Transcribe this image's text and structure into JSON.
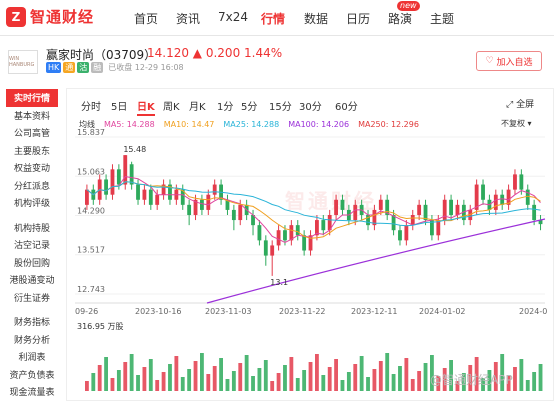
{
  "brand": {
    "logo_char": "Z",
    "name": "智通财经"
  },
  "nav": {
    "items": [
      "首页",
      "资讯",
      "7x24",
      "行情",
      "数据",
      "日历",
      "路演",
      "主题"
    ],
    "active": "行情",
    "new_badge": "new"
  },
  "stock": {
    "logo_text": "WIN HANBURG",
    "name_code": "赢家时尚（03709）",
    "price_line": "14.120 ▲ 0.200 1.44%",
    "tags": [
      {
        "t": "HK",
        "c": "#2f7ef5"
      },
      {
        "t": "通",
        "c": "#f5a623"
      },
      {
        "t": "沽",
        "c": "#3bb16c"
      },
      {
        "t": "融",
        "c": "#bbbbbb"
      }
    ],
    "status_time": "已收盘 12-29 16:08",
    "watch_label": "加入自选",
    "watch_icon": "heart-icon"
  },
  "sidebar": {
    "group1": [
      "实时行情",
      "基本资料",
      "公司高管",
      "主要股东",
      "权益变动",
      "分红派息",
      "机构评级"
    ],
    "group2": [
      "机构持股",
      "沽空记录",
      "股份回购",
      "港股通变动",
      "衍生证券"
    ],
    "group3": [
      "财务指标",
      "财务分析",
      "利润表",
      "资产负债表",
      "现金流量表"
    ],
    "active": "实时行情"
  },
  "period_tabs": [
    "分时",
    "5日",
    "日K",
    "周K",
    "月K",
    "1分",
    "5分",
    "15分",
    "30分",
    "60分"
  ],
  "active_period": "日K",
  "expand_label": "全屏",
  "ma_legend": [
    {
      "t": "均线",
      "c": "#333333"
    },
    {
      "t": "MA5: 14.288",
      "c": "#e0459e"
    },
    {
      "t": "MA10: 14.47",
      "c": "#f0a020"
    },
    {
      "t": "MA25: 14.288",
      "c": "#2ab4d8"
    },
    {
      "t": "MA100: 14.206",
      "c": "#9b30d9"
    },
    {
      "t": "MA250: 12.296",
      "c": "#e03a3a"
    }
  ],
  "adjust_label": "不复权 ▾",
  "watermark": "智通财经",
  "corner_watermark": "@智通财经APP",
  "chart_data": {
    "type": "candlestick",
    "y_ticks": [
      "15.837",
      "15.063",
      "14.290",
      "13.517",
      "12.743"
    ],
    "ylim": [
      12.743,
      15.837
    ],
    "x_labels": [
      "09-26",
      "2023-10-16",
      "2023-11-03",
      "2023-11-22",
      "2023-12-11",
      "2024-01-02",
      "2024-0"
    ],
    "annotations": [
      {
        "label": "15.48",
        "value": 15.48
      },
      {
        "label": "13.1",
        "value": 13.1
      }
    ],
    "volume_label": "316.95 万股",
    "candles": [
      [
        14.5,
        14.8,
        14.9,
        14.4
      ],
      [
        14.8,
        14.6,
        14.9,
        14.5
      ],
      [
        14.6,
        15.0,
        15.1,
        14.5
      ],
      [
        15.0,
        14.7,
        15.1,
        14.6
      ],
      [
        14.7,
        15.2,
        15.3,
        14.6
      ],
      [
        15.2,
        14.9,
        15.3,
        14.8
      ],
      [
        14.9,
        15.48,
        15.48,
        14.8
      ],
      [
        15.3,
        14.9,
        15.35,
        14.8
      ],
      [
        14.9,
        14.6,
        15.0,
        14.5
      ],
      [
        14.6,
        14.8,
        14.9,
        14.5
      ],
      [
        14.8,
        14.5,
        14.9,
        14.4
      ],
      [
        14.5,
        14.7,
        14.8,
        14.4
      ],
      [
        14.7,
        14.9,
        15.0,
        14.6
      ],
      [
        14.9,
        14.6,
        15.0,
        14.5
      ],
      [
        14.6,
        14.8,
        14.9,
        14.5
      ],
      [
        14.8,
        14.5,
        14.9,
        14.4
      ],
      [
        14.5,
        14.3,
        14.6,
        14.1
      ],
      [
        14.3,
        14.6,
        14.7,
        14.2
      ],
      [
        14.6,
        14.4,
        14.7,
        14.3
      ],
      [
        14.4,
        14.7,
        14.8,
        14.3
      ],
      [
        14.7,
        14.9,
        15.0,
        14.6
      ],
      [
        14.9,
        14.6,
        15.0,
        14.5
      ],
      [
        14.6,
        14.4,
        14.7,
        14.3
      ],
      [
        14.4,
        14.2,
        14.5,
        14.0
      ],
      [
        14.2,
        14.5,
        14.6,
        14.1
      ],
      [
        14.5,
        14.3,
        14.6,
        14.2
      ],
      [
        14.3,
        14.1,
        14.4,
        13.9
      ],
      [
        14.1,
        13.8,
        14.2,
        13.7
      ],
      [
        13.8,
        13.5,
        13.9,
        13.3
      ],
      [
        13.5,
        13.7,
        13.8,
        13.1
      ],
      [
        13.7,
        14.0,
        14.1,
        13.6
      ],
      [
        14.0,
        13.8,
        14.1,
        13.7
      ],
      [
        13.8,
        14.1,
        14.2,
        13.7
      ],
      [
        14.1,
        13.9,
        14.2,
        13.8
      ],
      [
        13.9,
        13.6,
        14.0,
        13.5
      ],
      [
        13.6,
        13.9,
        14.0,
        13.5
      ],
      [
        13.9,
        14.2,
        14.3,
        13.8
      ],
      [
        14.2,
        14.0,
        14.3,
        13.9
      ],
      [
        14.0,
        14.3,
        14.4,
        13.9
      ],
      [
        14.3,
        14.6,
        14.7,
        14.2
      ],
      [
        14.6,
        14.4,
        14.7,
        14.3
      ],
      [
        14.4,
        14.2,
        14.5,
        14.1
      ],
      [
        14.2,
        14.5,
        14.6,
        14.1
      ],
      [
        14.5,
        14.3,
        14.6,
        14.2
      ],
      [
        14.3,
        14.1,
        14.4,
        14.0
      ],
      [
        14.1,
        14.4,
        14.5,
        14.0
      ],
      [
        14.4,
        14.6,
        14.7,
        14.3
      ],
      [
        14.6,
        14.3,
        14.7,
        14.2
      ],
      [
        14.3,
        14.0,
        14.4,
        13.9
      ],
      [
        14.0,
        13.8,
        14.1,
        13.7
      ],
      [
        13.8,
        14.1,
        14.2,
        13.7
      ],
      [
        14.1,
        14.3,
        14.4,
        14.0
      ],
      [
        14.3,
        14.5,
        14.6,
        14.2
      ],
      [
        14.5,
        14.2,
        14.6,
        14.1
      ],
      [
        14.2,
        13.9,
        14.3,
        13.8
      ],
      [
        13.9,
        14.2,
        14.3,
        13.8
      ],
      [
        14.2,
        14.6,
        14.7,
        14.1
      ],
      [
        14.6,
        14.3,
        14.7,
        14.2
      ],
      [
        14.3,
        14.5,
        14.6,
        14.2
      ],
      [
        14.5,
        14.2,
        14.6,
        14.1
      ],
      [
        14.2,
        14.4,
        14.5,
        14.1
      ],
      [
        14.4,
        14.9,
        15.0,
        14.3
      ],
      [
        14.9,
        14.6,
        15.0,
        14.5
      ],
      [
        14.6,
        14.4,
        14.7,
        14.3
      ],
      [
        14.4,
        14.7,
        14.8,
        14.3
      ],
      [
        14.7,
        14.5,
        14.8,
        14.4
      ],
      [
        14.5,
        14.8,
        14.9,
        14.4
      ],
      [
        14.8,
        15.1,
        15.2,
        14.7
      ],
      [
        15.1,
        14.8,
        15.2,
        14.7
      ],
      [
        14.8,
        14.5,
        14.9,
        14.4
      ],
      [
        14.5,
        14.2,
        14.6,
        14.1
      ],
      [
        14.2,
        14.12,
        14.3,
        14.0
      ]
    ]
  }
}
